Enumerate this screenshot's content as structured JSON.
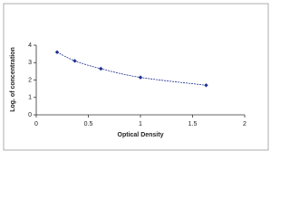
{
  "chart_data": {
    "type": "scatter",
    "x_label": "Optical Density",
    "y_label": "Log. of concentration",
    "series": [
      {
        "color": "#1f2f8f",
        "x": [
          0.2,
          0.37,
          0.62,
          1.0,
          1.63
        ],
        "values": [
          3.6,
          3.1,
          2.65,
          2.15,
          1.7
        ]
      }
    ],
    "xlim": [
      0,
      2
    ],
    "xticks": [
      0,
      0.5,
      1,
      1.5,
      2
    ],
    "ylim": [
      0,
      4
    ],
    "yticks": [
      0,
      1,
      2,
      3,
      4
    ],
    "fit_curve": true
  }
}
